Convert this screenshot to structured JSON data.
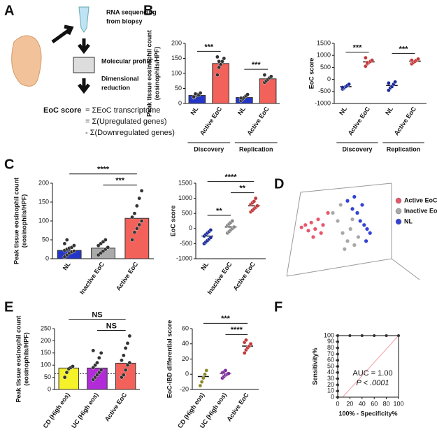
{
  "diagram": {
    "letters": [
      "A",
      "B",
      "C",
      "D",
      "E",
      "F"
    ],
    "steps": [
      "RNA sequencing",
      "from biopsy",
      "Molecular profile",
      "Dimensional",
      "reduction"
    ],
    "formula_label": "EoC score",
    "formula": [
      "= ΣEoC transcriptome",
      "= Σ(Upregulated genes)",
      "- Σ(Downregulated genes)"
    ]
  },
  "chart_data": [
    {
      "type": "bar",
      "ylabel": [
        "Peak tissue eosinophil count",
        "(eosinophils/HPF)"
      ],
      "categories": [
        "NL",
        "Active EoC",
        "NL",
        "Active EoC"
      ],
      "values": [
        27,
        133,
        20,
        82
      ],
      "colors": [
        "#2436c8",
        "#f2615a",
        "#2436c8",
        "#f2615a"
      ],
      "points": [
        [
          20,
          25,
          30,
          28,
          35,
          22,
          32
        ],
        [
          95,
          120,
          130,
          140,
          150,
          155,
          140
        ],
        [
          10,
          15,
          20,
          25,
          30,
          18
        ],
        [
          70,
          75,
          80,
          85,
          90,
          95
        ]
      ],
      "ylim": [
        0,
        200
      ],
      "yticks": [
        0,
        50,
        100,
        150,
        200
      ],
      "groups": [
        {
          "name": "Discovery",
          "from": 0,
          "to": 1
        },
        {
          "name": "Replication",
          "from": 2,
          "to": 3
        }
      ],
      "annotations": [
        {
          "text": "***",
          "from": 0,
          "to": 1
        },
        {
          "text": "***",
          "from": 2,
          "to": 3
        }
      ]
    },
    {
      "type": "dot",
      "ylabel": [
        "EoC score"
      ],
      "categories": [
        "NL",
        "Active EoC",
        "NL",
        "Active EoC"
      ],
      "values": [
        -300,
        730,
        -250,
        760
      ],
      "colors": [
        "#1a2a9a",
        "#c2393a",
        "#1a2a9a",
        "#c2393a"
      ],
      "points": [
        [
          -400,
          -350,
          -300,
          -250,
          -200,
          -330
        ],
        [
          550,
          650,
          700,
          750,
          800,
          900,
          700
        ],
        [
          -450,
          -350,
          -300,
          -200,
          -100,
          -150
        ],
        [
          650,
          700,
          750,
          800,
          850,
          800
        ]
      ],
      "ylim": [
        -1000,
        1500
      ],
      "yticks": [
        -1000,
        -500,
        0,
        500,
        1000,
        1500
      ],
      "groups": [
        {
          "name": "Discovery",
          "from": 0,
          "to": 1
        },
        {
          "name": "Replication",
          "from": 2,
          "to": 3
        }
      ],
      "annotations": [
        {
          "text": "***",
          "from": 0,
          "to": 1
        },
        {
          "text": "***",
          "from": 2,
          "to": 3
        }
      ]
    },
    {
      "type": "bar",
      "ylabel": [
        "Peak tissue eosinophil count",
        "(eosinophils/HPF)"
      ],
      "categories": [
        "NL",
        "Inactive EoC",
        "Active EoC"
      ],
      "values": [
        22,
        28,
        107
      ],
      "colors": [
        "#2436c8",
        "#aaaaaa",
        "#f2615a"
      ],
      "points": [
        [
          5,
          10,
          15,
          18,
          20,
          22,
          25,
          28,
          30,
          35,
          40,
          50
        ],
        [
          10,
          15,
          20,
          25,
          30,
          35,
          40,
          45,
          50
        ],
        [
          50,
          70,
          80,
          90,
          100,
          110,
          120,
          140,
          160,
          180
        ]
      ],
      "ylim": [
        0,
        200
      ],
      "yticks": [
        0,
        50,
        100,
        150,
        200
      ],
      "annotations": [
        {
          "text": "****",
          "from": 0,
          "to": 2
        },
        {
          "text": "***",
          "from": 1,
          "to": 2
        }
      ]
    },
    {
      "type": "dot",
      "ylabel": [
        "EoC score"
      ],
      "categories": [
        "NL",
        "Inactive EoC",
        "Active EoC"
      ],
      "values": [
        -250,
        50,
        750
      ],
      "colors": [
        "#1a2a9a",
        "#888888",
        "#c2393a"
      ],
      "points": [
        [
          -500,
          -450,
          -400,
          -350,
          -300,
          -250,
          -200,
          -150,
          -100,
          -50
        ],
        [
          -150,
          -100,
          -50,
          0,
          50,
          100,
          150,
          200,
          250
        ],
        [
          550,
          600,
          650,
          700,
          750,
          800,
          850,
          900,
          1000
        ]
      ],
      "ylim": [
        -1000,
        1500
      ],
      "yticks": [
        -1000,
        -500,
        0,
        500,
        1000,
        1500
      ],
      "annotations": [
        {
          "text": "****",
          "from": 0,
          "to": 2
        },
        {
          "text": "**",
          "from": 0,
          "to": 1
        },
        {
          "text": "**",
          "from": 1,
          "to": 2
        }
      ]
    },
    {
      "type": "scatter",
      "xlim": [
        0,
        100
      ],
      "ylim": [
        0,
        100
      ],
      "series": [
        {
          "name": "Active EoC",
          "color": "#e8566a",
          "x": [
            8,
            12,
            15,
            18,
            22,
            25,
            28,
            30,
            35,
            20
          ],
          "y": [
            52,
            55,
            48,
            58,
            50,
            62,
            45,
            55,
            70,
            40
          ]
        },
        {
          "name": "Inactive EoC",
          "color": "#a8a8a8",
          "x": [
            40,
            45,
            50,
            55,
            58,
            62,
            48,
            52,
            60,
            66
          ],
          "y": [
            70,
            60,
            45,
            35,
            50,
            30,
            80,
            25,
            62,
            40
          ]
        },
        {
          "name": "NL",
          "color": "#3442d6",
          "x": [
            55,
            60,
            65,
            68,
            72,
            75,
            78,
            62,
            70,
            74
          ],
          "y": [
            85,
            75,
            70,
            60,
            55,
            50,
            45,
            90,
            80,
            35
          ]
        }
      ]
    },
    {
      "type": "bar",
      "ylabel": [
        "Peak tissue eosinophil count",
        "(eosinophils/HPF)"
      ],
      "categories": [
        "CD (High eos)",
        "UC (High eos)",
        "Active EoC"
      ],
      "values": [
        88,
        88,
        108
      ],
      "colors": [
        "#f5f22a",
        "#b22bd8",
        "#f2615a"
      ],
      "points": [
        [
          50,
          70,
          85,
          90,
          95
        ],
        [
          40,
          50,
          60,
          70,
          80,
          90,
          100,
          110,
          130,
          150,
          160
        ],
        [
          50,
          60,
          80,
          100,
          110,
          120,
          140,
          170,
          190,
          220
        ]
      ],
      "ylim": [
        0,
        250
      ],
      "yticks": [
        0,
        50,
        100,
        150,
        200,
        250
      ],
      "hline": 65,
      "annotations": [
        {
          "text": "NS",
          "from": 0,
          "to": 2
        },
        {
          "text": "NS",
          "from": 1,
          "to": 2
        }
      ]
    },
    {
      "type": "dot",
      "ylabel": [
        "EoC-IBD differential score"
      ],
      "categories": [
        "CD (High eos)",
        "UC (High eos)",
        "Active EoC"
      ],
      "values": [
        -3,
        1,
        37
      ],
      "colors": [
        "#8a8a30",
        "#7a2a9a",
        "#c2393a"
      ],
      "points": [
        [
          -15,
          -10,
          -5,
          0,
          5
        ],
        [
          -5,
          -3,
          -1,
          0,
          1,
          2,
          3,
          5
        ],
        [
          28,
          32,
          35,
          37,
          40,
          42,
          45
        ]
      ],
      "ylim": [
        -20,
        60
      ],
      "yticks": [
        -20,
        0,
        20,
        40,
        60
      ],
      "annotations": [
        {
          "text": "***",
          "from": 0,
          "to": 2
        },
        {
          "text": "****",
          "from": 1,
          "to": 2
        }
      ]
    },
    {
      "type": "line",
      "xlabel": "100% - Specificity%",
      "ylabel": [
        "Sensitivity%"
      ],
      "x": [
        0,
        0,
        0,
        0,
        0,
        0,
        0,
        0,
        0,
        0,
        0,
        20,
        40,
        60,
        80,
        100
      ],
      "y": [
        0,
        10,
        20,
        30,
        40,
        50,
        60,
        70,
        80,
        90,
        100,
        100,
        100,
        100,
        100,
        100
      ],
      "color": "#333333",
      "xlim": [
        0,
        100
      ],
      "xticks": [
        0,
        20,
        40,
        60,
        80,
        100
      ],
      "ylim": [
        0,
        100
      ],
      "yticks": [
        0,
        10,
        20,
        30,
        40,
        50,
        60,
        70,
        80,
        90,
        100
      ],
      "annotations": [
        "AUC = 1.00",
        "P < .0001"
      ]
    }
  ]
}
